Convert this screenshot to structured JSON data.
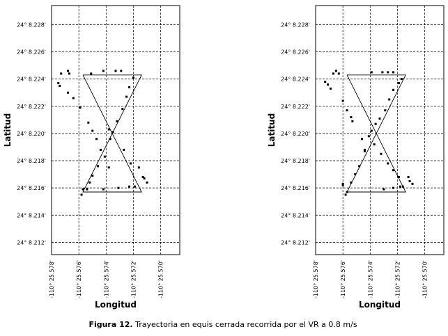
{
  "chart_data": [
    {
      "type": "scatter",
      "xlabel": "Longitud",
      "ylabel": "Latitud",
      "color": "#000000",
      "grid": true,
      "xlim": [
        -25.578,
        -25.5686
      ],
      "ylim": [
        8.2111,
        8.2294
      ],
      "xticks": [
        {
          "value": -25.578,
          "label": "-110° 25.578'"
        },
        {
          "value": -25.576,
          "label": "-110° 25.576'"
        },
        {
          "value": -25.574,
          "label": "-110° 25.574'"
        },
        {
          "value": -25.572,
          "label": "-110° 25.572'"
        },
        {
          "value": -25.57,
          "label": "-110° 25.570'"
        }
      ],
      "yticks": [
        {
          "value": 8.228,
          "label": "24° 8.228'"
        },
        {
          "value": 8.226,
          "label": "24° 8.226'"
        },
        {
          "value": 8.224,
          "label": "24° 8.224'"
        },
        {
          "value": 8.222,
          "label": "24° 8.222'"
        },
        {
          "value": 8.22,
          "label": "24° 8.220'"
        },
        {
          "value": 8.218,
          "label": "24° 8.218'"
        },
        {
          "value": 8.216,
          "label": "24° 8.216'"
        },
        {
          "value": 8.214,
          "label": "24° 8.214'"
        },
        {
          "value": 8.212,
          "label": "24° 8.212'"
        }
      ],
      "path": {
        "x": [
          -25.5757,
          -25.5714,
          -25.5757,
          -25.5714,
          -25.5757
        ],
        "y": [
          8.2243,
          8.2243,
          8.2157,
          8.2157,
          8.2243
        ]
      },
      "x": [
        -25.5775,
        -25.5774,
        -25.5773,
        -25.5768,
        -25.5767,
        -25.5768,
        -25.5764,
        -25.5759,
        -25.5753,
        -25.575,
        -25.5747,
        -25.5744,
        -25.5741,
        -25.5738,
        -25.5737,
        -25.5738,
        -25.5735,
        -25.5732,
        -25.5728,
        -25.5725,
        -25.5723,
        -25.572,
        -25.5751,
        -25.5742,
        -25.5733,
        -25.5729,
        -25.5757,
        -25.5758,
        -25.5754,
        -25.5752,
        -25.575,
        -25.5746,
        -25.5742,
        -25.5731,
        -25.5723,
        -25.5719,
        -25.5727,
        -25.5722,
        -25.5716,
        -25.5713,
        -25.571,
        -25.5712
      ],
      "y": [
        8.2237,
        8.2235,
        8.2244,
        8.2246,
        8.2244,
        8.223,
        8.2226,
        8.2219,
        8.2208,
        8.2202,
        8.2196,
        8.2188,
        8.2183,
        8.2175,
        8.2196,
        8.2203,
        8.2201,
        8.2209,
        8.2218,
        8.2227,
        8.2234,
        8.2241,
        8.2244,
        8.2246,
        8.2246,
        8.2246,
        8.2159,
        8.2155,
        8.2159,
        8.2164,
        8.2169,
        8.2176,
        8.2159,
        8.216,
        8.2161,
        8.2161,
        8.2188,
        8.2178,
        8.2175,
        8.2168,
        8.2164,
        8.2167
      ]
    },
    {
      "type": "scatter",
      "xlabel": "Longitud",
      "ylabel": "Latitud",
      "color": "#000000",
      "grid": true,
      "xlim": [
        -25.578,
        -25.5686
      ],
      "ylim": [
        8.2111,
        8.2294
      ],
      "xticks": [
        {
          "value": -25.578,
          "label": "-110° 25.578'"
        },
        {
          "value": -25.576,
          "label": "-110° 25.576'"
        },
        {
          "value": -25.574,
          "label": "-110° 25.574'"
        },
        {
          "value": -25.572,
          "label": "-110° 25.572'"
        },
        {
          "value": -25.57,
          "label": "-110° 25.570'"
        }
      ],
      "yticks": [
        {
          "value": 8.228,
          "label": "24° 8.228'"
        },
        {
          "value": 8.226,
          "label": "24° 8.226'"
        },
        {
          "value": 8.224,
          "label": "24° 8.224'"
        },
        {
          "value": 8.222,
          "label": "24° 8.222'"
        },
        {
          "value": 8.22,
          "label": "24° 8.220'"
        },
        {
          "value": 8.218,
          "label": "24° 8.218'"
        },
        {
          "value": 8.216,
          "label": "24° 8.216'"
        },
        {
          "value": 8.214,
          "label": "24° 8.214'"
        },
        {
          "value": 8.212,
          "label": "24° 8.212'"
        }
      ],
      "path": {
        "x": [
          -25.5757,
          -25.5714,
          -25.5757,
          -25.5714,
          -25.5757
        ],
        "y": [
          8.2243,
          8.2243,
          8.2157,
          8.2157,
          8.2243
        ]
      },
      "x": [
        -25.5773,
        -25.5771,
        -25.5769,
        -25.5767,
        -25.5765,
        -25.5763,
        -25.576,
        -25.5757,
        -25.5754,
        -25.5753,
        -25.5746,
        -25.5744,
        -25.5741,
        -25.5739,
        -25.5736,
        -25.5733,
        -25.5729,
        -25.5726,
        -25.5723,
        -25.5719,
        -25.5717,
        -25.5739,
        -25.5731,
        -25.5727,
        -25.5723,
        -25.576,
        -25.576,
        -25.5758,
        -25.5757,
        -25.5754,
        -25.5751,
        -25.5748,
        -25.5744,
        -25.5737,
        -25.5732,
        -25.5727,
        -25.5723,
        -25.5719,
        -25.573,
        -25.5723,
        -25.5718,
        -25.5716,
        -25.5712,
        -25.5711,
        -25.5709
      ],
      "y": [
        8.2238,
        8.2236,
        8.2233,
        8.2244,
        8.2246,
        8.2244,
        8.2224,
        8.2217,
        8.2212,
        8.2209,
        8.2196,
        8.2188,
        8.2198,
        8.2202,
        8.2207,
        8.2211,
        8.2217,
        8.2225,
        8.2232,
        8.2237,
        8.224,
        8.2245,
        8.2245,
        8.2245,
        8.2245,
        8.2163,
        8.2162,
        8.2155,
        8.2157,
        8.2164,
        8.217,
        8.2176,
        8.2187,
        8.2192,
        8.2185,
        8.2178,
        8.2173,
        8.2168,
        8.2159,
        8.216,
        8.2161,
        8.2161,
        8.2168,
        8.2165,
        8.2163
      ]
    }
  ],
  "caption": {
    "label": "Figura 12.",
    "text": "Trayectoria en equis cerrada recorrida por el VR a 0.8 m/s"
  }
}
